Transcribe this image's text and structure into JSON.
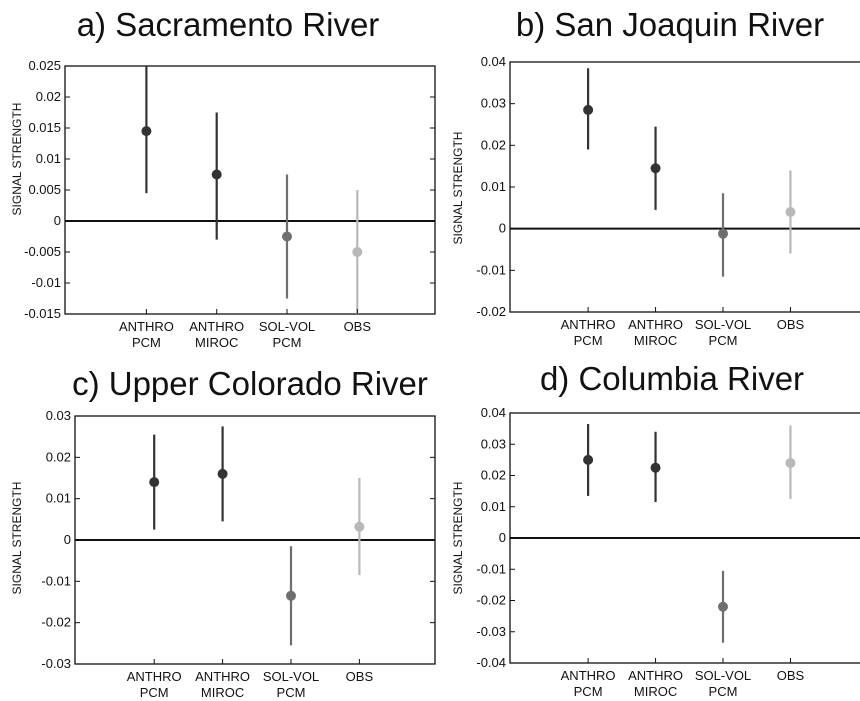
{
  "chart_data": [
    {
      "type": "scatter",
      "title": "a) Sacramento River",
      "ylabel": "SIGNAL STRENGTH",
      "ylim": [
        -0.015,
        0.025
      ],
      "yticks": [
        "0.025",
        "0.02",
        "0.015",
        "0.01",
        "0.005",
        "0",
        "-0.005",
        "-0.01",
        "-0.015"
      ],
      "categories": [
        [
          "ANTHRO",
          "PCM"
        ],
        [
          "ANTHRO",
          "MIROC"
        ],
        [
          "SOL-VOL",
          "PCM"
        ],
        [
          "OBS"
        ]
      ],
      "values": [
        0.0145,
        0.0075,
        -0.0025,
        -0.005
      ],
      "error_low": [
        0.0045,
        -0.003,
        -0.0125,
        -0.0155
      ],
      "error_high": [
        0.025,
        0.0175,
        0.0075,
        0.005
      ],
      "colors": [
        "#333333",
        "#333333",
        "#6f6f6f",
        "#b8b8b8"
      ],
      "zero_line": true
    },
    {
      "type": "scatter",
      "title": "b) San Joaquin River",
      "ylabel": "SIGNAL STRENGTH",
      "ylim": [
        -0.02,
        0.04
      ],
      "yticks": [
        "0.04",
        "0.03",
        "0.02",
        "0.01",
        "0",
        "-0.01",
        "-0.02"
      ],
      "categories": [
        [
          "ANTHRO",
          "PCM"
        ],
        [
          "ANTHRO",
          "MIROC"
        ],
        [
          "SOL-VOL",
          "PCM"
        ],
        [
          "OBS"
        ]
      ],
      "values": [
        0.0285,
        0.0145,
        -0.0012,
        0.004
      ],
      "error_low": [
        0.019,
        0.0045,
        -0.0115,
        -0.006
      ],
      "error_high": [
        0.0385,
        0.0245,
        0.0085,
        0.014
      ],
      "colors": [
        "#333333",
        "#333333",
        "#6f6f6f",
        "#b8b8b8"
      ],
      "zero_line": true
    },
    {
      "type": "scatter",
      "title": "c) Upper Colorado River",
      "ylabel": "SIGNAL STRENGTH",
      "ylim": [
        -0.03,
        0.03
      ],
      "yticks": [
        "0.03",
        "0.02",
        "0.01",
        "0",
        "-0.01",
        "-0.02",
        "-0.03"
      ],
      "categories": [
        [
          "ANTHRO",
          "PCM"
        ],
        [
          "ANTHRO",
          "MIROC"
        ],
        [
          "SOL-VOL",
          "PCM"
        ],
        [
          "OBS"
        ]
      ],
      "values": [
        0.014,
        0.016,
        -0.0135,
        0.0032
      ],
      "error_low": [
        0.0025,
        0.0045,
        -0.0255,
        -0.0085
      ],
      "error_high": [
        0.0255,
        0.0275,
        -0.0015,
        0.015
      ],
      "colors": [
        "#333333",
        "#333333",
        "#6f6f6f",
        "#b8b8b8"
      ],
      "zero_line": true
    },
    {
      "type": "scatter",
      "title": "d) Columbia River",
      "ylabel": "SIGNAL STRENGTH",
      "ylim": [
        -0.04,
        0.04
      ],
      "yticks": [
        "0.04",
        "0.03",
        "0.02",
        "0.01",
        "0",
        "-0.01",
        "-0.02",
        "-0.03",
        "-0.04"
      ],
      "categories": [
        [
          "ANTHRO",
          "PCM"
        ],
        [
          "ANTHRO",
          "MIROC"
        ],
        [
          "SOL-VOL",
          "PCM"
        ],
        [
          "OBS"
        ]
      ],
      "values": [
        0.025,
        0.0225,
        -0.022,
        0.024
      ],
      "error_low": [
        0.0135,
        0.0115,
        -0.0335,
        0.0125
      ],
      "error_high": [
        0.0365,
        0.034,
        -0.0105,
        0.036
      ],
      "colors": [
        "#333333",
        "#333333",
        "#6f6f6f",
        "#b8b8b8"
      ],
      "zero_line": true
    }
  ]
}
